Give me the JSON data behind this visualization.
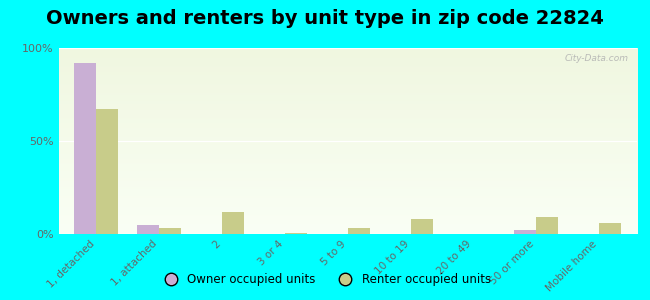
{
  "title": "Owners and renters by unit type in zip code 22824",
  "categories": [
    "1, detached",
    "1, attached",
    "2",
    "3 or 4",
    "5 to 9",
    "10 to 19",
    "20 to 49",
    "50 or more",
    "Mobile home"
  ],
  "owner_values": [
    92,
    5,
    0,
    0,
    0,
    0,
    0,
    2,
    0
  ],
  "renter_values": [
    67,
    3,
    12,
    0.5,
    3,
    8,
    0,
    9,
    6
  ],
  "owner_color": "#c9afd4",
  "renter_color": "#c8cc8a",
  "background_color": "#00ffff",
  "grad_top": "#f0f7e0",
  "grad_bottom": "#fafff5",
  "ylim": [
    0,
    100
  ],
  "yticks": [
    0,
    50,
    100
  ],
  "ytick_labels": [
    "0%",
    "50%",
    "100%"
  ],
  "bar_width": 0.35,
  "legend_owner": "Owner occupied units",
  "legend_renter": "Renter occupied units",
  "title_fontsize": 14,
  "watermark": "City-Data.com"
}
